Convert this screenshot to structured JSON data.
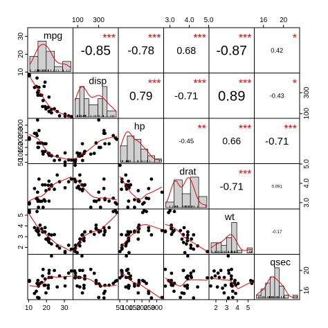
{
  "chart_data": {
    "type": "scatter",
    "matrix": "correlation-pairs",
    "title": "",
    "variables": [
      {
        "name": "mpg",
        "range": [
          10.4,
          33.9
        ],
        "ticks": [
          10,
          20,
          30
        ],
        "tick_labels": [
          "10",
          "20",
          "30"
        ],
        "hist": {
          "breaks": [
            10,
            15,
            20,
            25,
            30,
            35
          ],
          "heights": [
            6,
            12,
            8,
            2,
            4
          ]
        }
      },
      {
        "name": "disp",
        "range": [
          71.1,
          472
        ],
        "ticks": [
          100,
          300
        ],
        "tick_labels": [
          "100",
          "300"
        ],
        "hist": {
          "breaks": [
            50,
            100,
            150,
            200,
            300,
            350,
            400,
            500
          ],
          "heights": [
            3,
            5,
            3,
            4,
            3,
            5,
            2
          ]
        }
      },
      {
        "name": "hp",
        "range": [
          52,
          335
        ],
        "ticks": [
          50,
          100,
          150,
          200,
          250,
          300
        ],
        "tick_labels": [
          "50",
          "100",
          "150",
          "200",
          "250",
          "300"
        ],
        "hist": {
          "breaks": [
            50,
            100,
            150,
            200,
            250,
            300,
            350
          ],
          "heights": [
            5,
            8,
            7,
            4,
            2,
            1
          ]
        }
      },
      {
        "name": "drat",
        "range": [
          2.76,
          4.93
        ],
        "ticks": [
          3.0,
          4.0,
          5.0
        ],
        "tick_labels": [
          "3.0",
          "4.0",
          "5.0"
        ],
        "hist": {
          "breaks": [
            2.5,
            3.0,
            3.5,
            4.0,
            4.5,
            5.0
          ],
          "heights": [
            2,
            10,
            5,
            11,
            4
          ]
        }
      },
      {
        "name": "wt",
        "range": [
          1.513,
          5.424
        ],
        "ticks": [
          2,
          3,
          4,
          5
        ],
        "tick_labels": [
          "2",
          "3",
          "4",
          "5"
        ],
        "hist": {
          "breaks": [
            1.5,
            2.0,
            2.5,
            3.0,
            3.5,
            4.0,
            4.5,
            5.0,
            5.5
          ],
          "heights": [
            4,
            4,
            3,
            6,
            12,
            1,
            0,
            2
          ]
        }
      },
      {
        "name": "qsec",
        "range": [
          14.5,
          22.9
        ],
        "ticks": [
          16,
          20
        ],
        "tick_labels": [
          "16",
          "20"
        ],
        "hist": {
          "breaks": [
            14,
            15,
            16,
            17,
            18,
            19,
            20,
            21,
            22,
            23
          ],
          "heights": [
            1,
            3,
            5,
            7,
            10,
            4,
            1,
            0,
            1
          ]
        }
      }
    ],
    "correlations": [
      {
        "row": 0,
        "col": 1,
        "r": "-0.85",
        "stars": "***"
      },
      {
        "row": 0,
        "col": 2,
        "r": "-0.78",
        "stars": "***"
      },
      {
        "row": 0,
        "col": 3,
        "r": "0.68",
        "stars": "***"
      },
      {
        "row": 0,
        "col": 4,
        "r": "-0.87",
        "stars": "***"
      },
      {
        "row": 0,
        "col": 5,
        "r": "0.42",
        "stars": "*"
      },
      {
        "row": 1,
        "col": 2,
        "r": "0.79",
        "stars": "***"
      },
      {
        "row": 1,
        "col": 3,
        "r": "-0.71",
        "stars": "***"
      },
      {
        "row": 1,
        "col": 4,
        "r": "0.89",
        "stars": "***"
      },
      {
        "row": 1,
        "col": 5,
        "r": "-0.43",
        "stars": "*"
      },
      {
        "row": 2,
        "col": 3,
        "r": "-0.45",
        "stars": "**"
      },
      {
        "row": 2,
        "col": 4,
        "r": "0.66",
        "stars": "***"
      },
      {
        "row": 2,
        "col": 5,
        "r": "-0.71",
        "stars": "***"
      },
      {
        "row": 3,
        "col": 4,
        "r": "-0.71",
        "stars": "***"
      },
      {
        "row": 3,
        "col": 5,
        "r": "0.091",
        "stars": ""
      },
      {
        "row": 4,
        "col": 5,
        "r": "-0.17",
        "stars": ""
      }
    ],
    "observations": [
      [
        21.0,
        160.0,
        110,
        3.9,
        2.62,
        16.46
      ],
      [
        21.0,
        160.0,
        110,
        3.9,
        2.875,
        17.02
      ],
      [
        22.8,
        108.0,
        93,
        3.85,
        2.32,
        18.61
      ],
      [
        21.4,
        258.0,
        110,
        3.08,
        3.215,
        19.44
      ],
      [
        18.7,
        360.0,
        175,
        3.15,
        3.44,
        17.02
      ],
      [
        18.1,
        225.0,
        105,
        2.76,
        3.46,
        20.22
      ],
      [
        14.3,
        360.0,
        245,
        3.21,
        3.57,
        15.84
      ],
      [
        24.4,
        146.7,
        62,
        3.69,
        3.19,
        20.0
      ],
      [
        22.8,
        140.8,
        95,
        3.92,
        3.15,
        22.9
      ],
      [
        19.2,
        167.6,
        123,
        3.92,
        3.44,
        18.3
      ],
      [
        17.8,
        167.6,
        123,
        3.92,
        3.44,
        18.9
      ],
      [
        16.4,
        275.8,
        180,
        3.07,
        4.07,
        17.4
      ],
      [
        17.3,
        275.8,
        180,
        3.07,
        3.73,
        17.6
      ],
      [
        15.2,
        275.8,
        180,
        3.07,
        3.78,
        18.0
      ],
      [
        10.4,
        472.0,
        205,
        2.93,
        5.25,
        17.98
      ],
      [
        10.4,
        460.0,
        215,
        3.0,
        5.424,
        17.82
      ],
      [
        14.7,
        440.0,
        230,
        3.23,
        5.345,
        17.42
      ],
      [
        32.4,
        78.7,
        66,
        4.08,
        2.2,
        19.47
      ],
      [
        30.4,
        75.7,
        52,
        4.93,
        1.615,
        18.52
      ],
      [
        33.9,
        71.1,
        65,
        4.22,
        1.835,
        19.9
      ],
      [
        21.5,
        120.1,
        97,
        3.7,
        2.465,
        20.01
      ],
      [
        15.5,
        318.0,
        150,
        2.76,
        3.52,
        16.87
      ],
      [
        15.2,
        304.0,
        150,
        3.15,
        3.435,
        17.3
      ],
      [
        13.3,
        350.0,
        245,
        3.73,
        3.84,
        15.41
      ],
      [
        19.2,
        400.0,
        175,
        3.08,
        3.845,
        17.05
      ],
      [
        27.3,
        79.0,
        66,
        4.08,
        1.935,
        18.9
      ],
      [
        26.0,
        120.3,
        91,
        4.43,
        2.14,
        16.7
      ],
      [
        30.4,
        95.1,
        113,
        3.77,
        1.513,
        16.9
      ],
      [
        15.8,
        351.0,
        264,
        4.22,
        3.17,
        14.5
      ],
      [
        19.7,
        145.0,
        175,
        3.62,
        2.77,
        15.5
      ],
      [
        15.0,
        301.0,
        335,
        3.54,
        3.57,
        14.6
      ],
      [
        21.4,
        121.0,
        109,
        4.11,
        2.78,
        18.6
      ]
    ]
  }
}
